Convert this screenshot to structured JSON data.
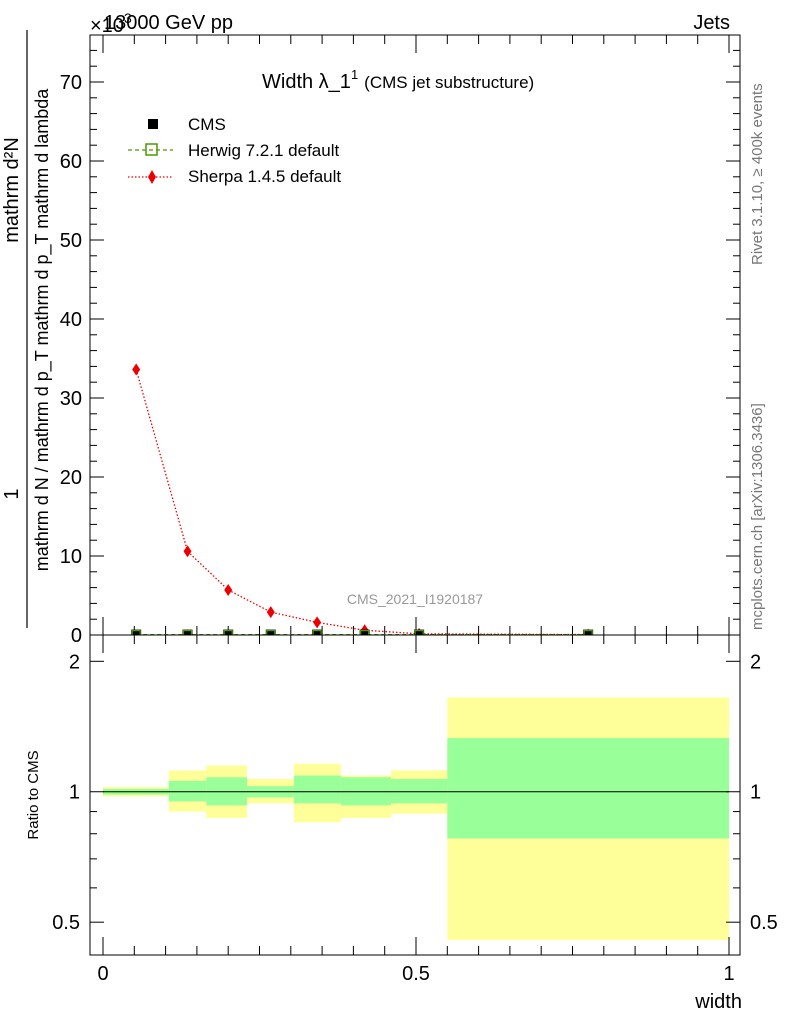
{
  "header": {
    "left": "13000 GeV pp",
    "right": "Jets",
    "exponent": "×10",
    "exponent_power": "3"
  },
  "side_texts": {
    "rivet": "Rivet 3.1.10, ≥ 400k events",
    "mcplots": "mcplots.cern.ch [arXiv:1306.3436]"
  },
  "chart_data": [
    {
      "type": "line",
      "title": "Width λ_1",
      "title_sup": "1",
      "subtitle": "(CMS jet substructure)",
      "watermark": "CMS_2021_I1920187",
      "ylabel_numerator": "1",
      "ylabel_denominator": "mathrm d N / mathrm d p_T mathrm d p_T mathrm d lambda",
      "ylabel_top": "mathrm d²N",
      "xlim": [
        0,
        1
      ],
      "ylim": [
        0,
        76
      ],
      "y_multiplier": 1000,
      "yticks": [
        0,
        10,
        20,
        30,
        40,
        50,
        60,
        70
      ],
      "legend_position": "top-left",
      "series": [
        {
          "name": "CMS",
          "color": "#000000",
          "marker": "filled-square",
          "x": [
            0.053,
            0.135,
            0.2,
            0.268,
            0.342,
            0.418,
            0.505,
            0.775
          ],
          "values": [
            0.05,
            0.05,
            0.05,
            0.05,
            0.05,
            0.05,
            0.05,
            0.05
          ]
        },
        {
          "name": "Herwig 7.2.1 default",
          "color": "#4a9a00",
          "marker": "open-square",
          "x": [
            0.053,
            0.135,
            0.2,
            0.268,
            0.342,
            0.418,
            0.505,
            0.775
          ],
          "values": [
            0.05,
            0.05,
            0.05,
            0.05,
            0.05,
            0.05,
            0.05,
            0.05
          ]
        },
        {
          "name": "Sherpa 1.4.5 default",
          "color": "#ee0000",
          "marker": "filled-diamond",
          "x": [
            0.053,
            0.135,
            0.2,
            0.268,
            0.342,
            0.418,
            0.505,
            0.775
          ],
          "values": [
            33.6,
            10.6,
            5.7,
            2.9,
            1.6,
            0.6,
            0.15,
            0.05
          ]
        }
      ]
    },
    {
      "type": "area",
      "ylabel": "Ratio to CMS",
      "xlabel": "width",
      "xlim": [
        0,
        1
      ],
      "ylim": [
        0.42,
        2.3
      ],
      "log_scale": true,
      "yticks": [
        0.5,
        1,
        2
      ],
      "xticks": [
        0,
        0.5,
        1
      ],
      "bands": [
        {
          "x0": 0.0,
          "x1": 0.105,
          "green": [
            0.985,
            1.015
          ],
          "yellow": [
            0.975,
            1.025
          ]
        },
        {
          "x0": 0.105,
          "x1": 0.165,
          "green": [
            0.95,
            1.06
          ],
          "yellow": [
            0.9,
            1.12
          ]
        },
        {
          "x0": 0.165,
          "x1": 0.23,
          "green": [
            0.93,
            1.08
          ],
          "yellow": [
            0.87,
            1.15
          ]
        },
        {
          "x0": 0.23,
          "x1": 0.305,
          "green": [
            0.97,
            1.03
          ],
          "yellow": [
            0.94,
            1.07
          ]
        },
        {
          "x0": 0.305,
          "x1": 0.38,
          "green": [
            0.94,
            1.09
          ],
          "yellow": [
            0.85,
            1.16
          ]
        },
        {
          "x0": 0.38,
          "x1": 0.46,
          "green": [
            0.93,
            1.08
          ],
          "yellow": [
            0.87,
            1.09
          ]
        },
        {
          "x0": 0.46,
          "x1": 0.55,
          "green": [
            0.94,
            1.07
          ],
          "yellow": [
            0.89,
            1.12
          ]
        },
        {
          "x0": 0.55,
          "x1": 1.0,
          "green": [
            0.78,
            1.33
          ],
          "yellow": [
            0.455,
            1.65
          ]
        }
      ]
    }
  ]
}
